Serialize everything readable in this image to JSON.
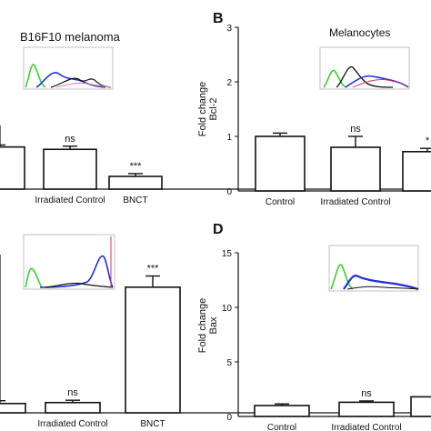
{
  "chart_data": [
    {
      "panel": "A",
      "type": "bar",
      "title": "B16F10 melanoma",
      "ylabel": "",
      "categories": [
        "",
        "Irradiated Control",
        "BNCT"
      ],
      "values": [
        1.06,
        1.0,
        0.32
      ],
      "errors": [
        0.05,
        0.08,
        0.07
      ],
      "significance": [
        "",
        "ns",
        "***"
      ],
      "ylim": [
        0,
        1.6
      ]
    },
    {
      "panel": "B",
      "type": "bar",
      "title": "Melanocytes",
      "ylabel": "Fold change\nBcl-2",
      "categories": [
        "Control",
        "Irradiated Control",
        ""
      ],
      "values": [
        1.0,
        0.8,
        0.72
      ],
      "errors": [
        0.06,
        0.2,
        0.06
      ],
      "significance": [
        "",
        "ns",
        "*"
      ],
      "yticks": [
        1,
        2,
        3
      ],
      "ylim": [
        0,
        3
      ]
    },
    {
      "panel": "C",
      "type": "bar",
      "title": "",
      "ylabel": "",
      "categories": [
        "",
        "Irradiated Control",
        "BNCT"
      ],
      "values": [
        1.0,
        1.1,
        13.5
      ],
      "errors": [
        0.3,
        0.25,
        1.2
      ],
      "significance": [
        "",
        "ns",
        "***"
      ],
      "ylim": [
        0,
        17
      ]
    },
    {
      "panel": "D",
      "type": "bar",
      "title": "",
      "ylabel": "Fold change\nBax",
      "categories": [
        "Control",
        "Irradiated Control",
        ""
      ],
      "values": [
        1.0,
        1.3,
        1.8
      ],
      "errors": [
        0.15,
        0.12,
        0.1
      ],
      "significance": [
        "",
        "ns",
        ""
      ],
      "yticks": [
        5,
        10,
        15
      ],
      "ylim": [
        0,
        15
      ]
    }
  ],
  "panel_letters": {
    "B": "B",
    "D": "D"
  },
  "colors": {
    "bar_fill": "#ffffff",
    "ink": "#111111",
    "flow_green": "#39d12a",
    "flow_blue": "#2030d8",
    "flow_black": "#111111",
    "flow_red": "#d2336a",
    "flow_pink": "#e07aa8"
  },
  "icons": [
    "flow-histogram-inset"
  ]
}
